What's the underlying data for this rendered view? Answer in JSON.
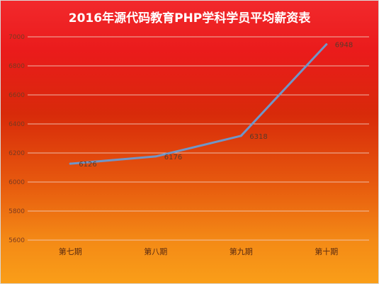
{
  "chart_data": {
    "type": "line",
    "title": "2016年源代码教育PHP学科学员平均薪资表",
    "categories": [
      "第七期",
      "第八期",
      "第九期",
      "第十期"
    ],
    "series": [
      {
        "values": [
          6126,
          6176,
          6318,
          6948
        ]
      }
    ],
    "data_labels": [
      "6126",
      "6176",
      "6318",
      "6948"
    ],
    "yticks": [
      5600,
      5800,
      6000,
      6200,
      6400,
      6600,
      6800,
      7000
    ],
    "ylim": [
      5600,
      7000
    ],
    "grid": true,
    "line_color": "#7096c8",
    "grid_color": "#f0c8b8"
  }
}
